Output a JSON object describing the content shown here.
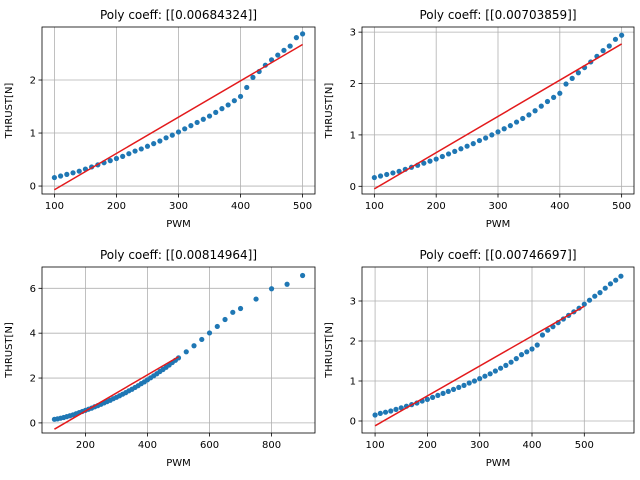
{
  "chart_data": [
    {
      "type": "scatter",
      "title": "Poly coeff: [[0.00684324]]",
      "xlabel": "PWM",
      "ylabel": "THRUST[N]",
      "xlim": [
        80,
        520
      ],
      "ylim": [
        -0.15,
        3.0
      ],
      "xticks": [
        100,
        200,
        300,
        400,
        500
      ],
      "yticks": [
        0,
        1,
        2
      ],
      "grid": true,
      "series": [
        {
          "kind": "scatter",
          "color": "#1f77b4",
          "x": [
            100,
            110,
            120,
            130,
            140,
            150,
            160,
            170,
            180,
            190,
            200,
            210,
            220,
            230,
            240,
            250,
            260,
            270,
            280,
            290,
            300,
            310,
            320,
            330,
            340,
            350,
            360,
            370,
            380,
            390,
            400,
            410,
            420,
            430,
            440,
            450,
            460,
            470,
            480,
            490,
            500
          ],
          "y": [
            0.16,
            0.19,
            0.22,
            0.25,
            0.28,
            0.32,
            0.36,
            0.4,
            0.44,
            0.48,
            0.52,
            0.56,
            0.61,
            0.66,
            0.7,
            0.75,
            0.8,
            0.85,
            0.91,
            0.96,
            1.02,
            1.08,
            1.14,
            1.2,
            1.26,
            1.32,
            1.39,
            1.46,
            1.53,
            1.61,
            1.69,
            1.86,
            2.05,
            2.16,
            2.28,
            2.38,
            2.47,
            2.56,
            2.64,
            2.8,
            2.87
          ]
        },
        {
          "kind": "line",
          "color": "#e31a1c",
          "x": [
            100,
            500
          ],
          "y": [
            -0.07,
            2.67
          ]
        }
      ]
    },
    {
      "type": "scatter",
      "title": "Poly coeff: [[0.00703859]]",
      "xlabel": "PWM",
      "ylabel": "THRUST[N]",
      "xlim": [
        80,
        520
      ],
      "ylim": [
        -0.15,
        3.1
      ],
      "xticks": [
        100,
        200,
        300,
        400,
        500
      ],
      "yticks": [
        0,
        1,
        2,
        3
      ],
      "grid": true,
      "series": [
        {
          "kind": "scatter",
          "color": "#1f77b4",
          "x": [
            100,
            110,
            120,
            130,
            140,
            150,
            160,
            170,
            180,
            190,
            200,
            210,
            220,
            230,
            240,
            250,
            260,
            270,
            280,
            290,
            300,
            310,
            320,
            330,
            340,
            350,
            360,
            370,
            380,
            390,
            400,
            410,
            420,
            430,
            440,
            450,
            460,
            470,
            480,
            490,
            500
          ],
          "y": [
            0.17,
            0.2,
            0.23,
            0.26,
            0.29,
            0.33,
            0.37,
            0.41,
            0.45,
            0.49,
            0.53,
            0.58,
            0.63,
            0.68,
            0.73,
            0.78,
            0.83,
            0.89,
            0.94,
            1.0,
            1.06,
            1.12,
            1.18,
            1.25,
            1.32,
            1.39,
            1.47,
            1.56,
            1.65,
            1.73,
            1.81,
            1.99,
            2.1,
            2.21,
            2.31,
            2.42,
            2.53,
            2.64,
            2.73,
            2.86,
            2.94
          ]
        },
        {
          "kind": "line",
          "color": "#e31a1c",
          "x": [
            100,
            500
          ],
          "y": [
            -0.05,
            2.77
          ]
        }
      ]
    },
    {
      "type": "scatter",
      "title": "Poly coeff: [[0.00814964]]",
      "xlabel": "PWM",
      "ylabel": "THRUST[N]",
      "xlim": [
        60,
        940
      ],
      "ylim": [
        -0.45,
        6.95
      ],
      "xticks": [
        200,
        400,
        600,
        800
      ],
      "yticks": [
        0,
        2,
        4,
        6
      ],
      "grid": true,
      "series": [
        {
          "kind": "scatter",
          "color": "#1f77b4",
          "x": [
            100,
            110,
            120,
            130,
            140,
            150,
            160,
            170,
            180,
            190,
            200,
            210,
            220,
            230,
            240,
            250,
            260,
            270,
            280,
            290,
            300,
            310,
            320,
            330,
            340,
            350,
            360,
            370,
            380,
            390,
            400,
            410,
            420,
            430,
            440,
            450,
            460,
            470,
            480,
            490,
            500,
            525,
            550,
            575,
            600,
            625,
            650,
            675,
            700,
            750,
            800,
            850,
            900
          ],
          "y": [
            0.16,
            0.18,
            0.21,
            0.24,
            0.28,
            0.32,
            0.36,
            0.41,
            0.46,
            0.51,
            0.56,
            0.61,
            0.66,
            0.72,
            0.77,
            0.83,
            0.89,
            0.95,
            1.01,
            1.08,
            1.14,
            1.21,
            1.28,
            1.35,
            1.43,
            1.5,
            1.58,
            1.66,
            1.75,
            1.83,
            1.92,
            2.01,
            2.1,
            2.19,
            2.29,
            2.38,
            2.48,
            2.58,
            2.69,
            2.79,
            2.9,
            3.17,
            3.44,
            3.72,
            4.01,
            4.3,
            4.61,
            4.93,
            5.1,
            5.52,
            5.98,
            6.18,
            6.57
          ]
        },
        {
          "kind": "line",
          "color": "#e31a1c",
          "x": [
            100,
            500
          ],
          "y": [
            -0.28,
            2.95
          ]
        }
      ]
    },
    {
      "type": "scatter",
      "title": "Poly coeff: [[0.00746697]]",
      "xlabel": "PWM",
      "ylabel": "THRUST[N]",
      "xlim": [
        75,
        595
      ],
      "ylim": [
        -0.3,
        3.85
      ],
      "xticks": [
        100,
        200,
        300,
        400,
        500
      ],
      "yticks": [
        0,
        1,
        2,
        3
      ],
      "grid": true,
      "series": [
        {
          "kind": "scatter",
          "color": "#1f77b4",
          "x": [
            100,
            110,
            120,
            130,
            140,
            150,
            160,
            170,
            180,
            190,
            200,
            210,
            220,
            230,
            240,
            250,
            260,
            270,
            280,
            290,
            300,
            310,
            320,
            330,
            340,
            350,
            360,
            370,
            380,
            390,
            400,
            410,
            420,
            430,
            440,
            450,
            460,
            470,
            480,
            490,
            500,
            510,
            520,
            530,
            540,
            550,
            560,
            570
          ],
          "y": [
            0.15,
            0.19,
            0.22,
            0.25,
            0.29,
            0.33,
            0.37,
            0.41,
            0.45,
            0.5,
            0.54,
            0.59,
            0.64,
            0.69,
            0.74,
            0.79,
            0.84,
            0.89,
            0.95,
            1.0,
            1.06,
            1.12,
            1.18,
            1.25,
            1.32,
            1.39,
            1.47,
            1.56,
            1.66,
            1.73,
            1.8,
            1.9,
            2.15,
            2.27,
            2.36,
            2.46,
            2.55,
            2.64,
            2.73,
            2.82,
            2.92,
            3.02,
            3.12,
            3.21,
            3.32,
            3.43,
            3.52,
            3.62
          ]
        },
        {
          "kind": "line",
          "color": "#e31a1c",
          "x": [
            100,
            500
          ],
          "y": [
            -0.12,
            2.87
          ]
        }
      ]
    }
  ]
}
